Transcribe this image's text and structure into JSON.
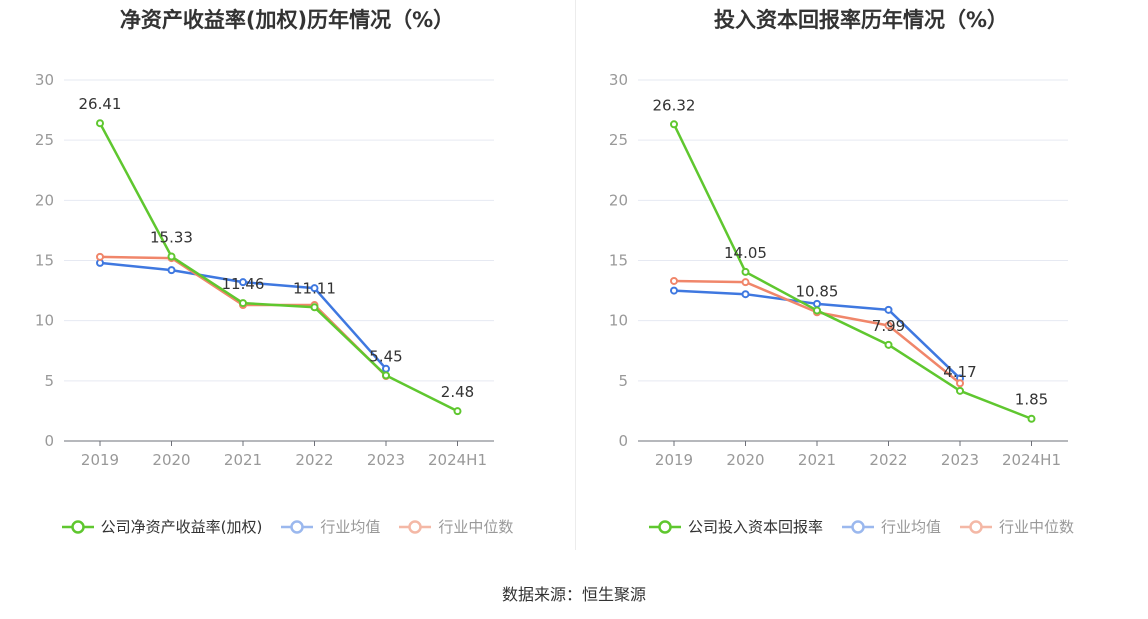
{
  "source": "数据来源：恒生聚源",
  "colors": {
    "company": "#5fc72f",
    "avg": "#3f78e0",
    "median": "#f0866a",
    "grid": "#e6e9f2",
    "axis": "#6e7079",
    "tick": "#999999"
  },
  "chart_data": [
    {
      "type": "line",
      "title": "净资产收益率(加权)历年情况（%）",
      "categories": [
        "2019",
        "2020",
        "2021",
        "2022",
        "2023",
        "2024H1"
      ],
      "ylim": [
        0,
        30
      ],
      "yticks": [
        "0",
        "5",
        "10",
        "15",
        "20",
        "25",
        "30"
      ],
      "grid": true,
      "legend_position": "bottom-center",
      "series": [
        {
          "name": "公司净资产收益率(加权)",
          "values": [
            26.41,
            15.33,
            11.46,
            11.11,
            5.45,
            2.48
          ],
          "labels": [
            "26.41",
            "15.33",
            "11.46",
            "11.11",
            "5.45",
            "2.48"
          ]
        },
        {
          "name": "行业均值",
          "values": [
            14.8,
            14.2,
            13.2,
            12.7,
            6.0,
            null
          ]
        },
        {
          "name": "行业中位数",
          "values": [
            15.3,
            15.2,
            11.3,
            11.3,
            5.4,
            null
          ]
        }
      ]
    },
    {
      "type": "line",
      "title": "投入资本回报率历年情况（%）",
      "categories": [
        "2019",
        "2020",
        "2021",
        "2022",
        "2023",
        "2024H1"
      ],
      "ylim": [
        0,
        30
      ],
      "yticks": [
        "0",
        "5",
        "10",
        "15",
        "20",
        "25",
        "30"
      ],
      "grid": true,
      "legend_position": "bottom-center",
      "series": [
        {
          "name": "公司投入资本回报率",
          "values": [
            26.32,
            14.05,
            10.85,
            7.99,
            4.17,
            1.85
          ],
          "labels": [
            "26.32",
            "14.05",
            "10.85",
            "7.99",
            "4.17",
            "1.85"
          ]
        },
        {
          "name": "行业均值",
          "values": [
            12.5,
            12.2,
            11.4,
            10.9,
            5.2,
            null
          ]
        },
        {
          "name": "行业中位数",
          "values": [
            13.3,
            13.2,
            10.7,
            9.6,
            4.8,
            null
          ]
        }
      ]
    }
  ]
}
